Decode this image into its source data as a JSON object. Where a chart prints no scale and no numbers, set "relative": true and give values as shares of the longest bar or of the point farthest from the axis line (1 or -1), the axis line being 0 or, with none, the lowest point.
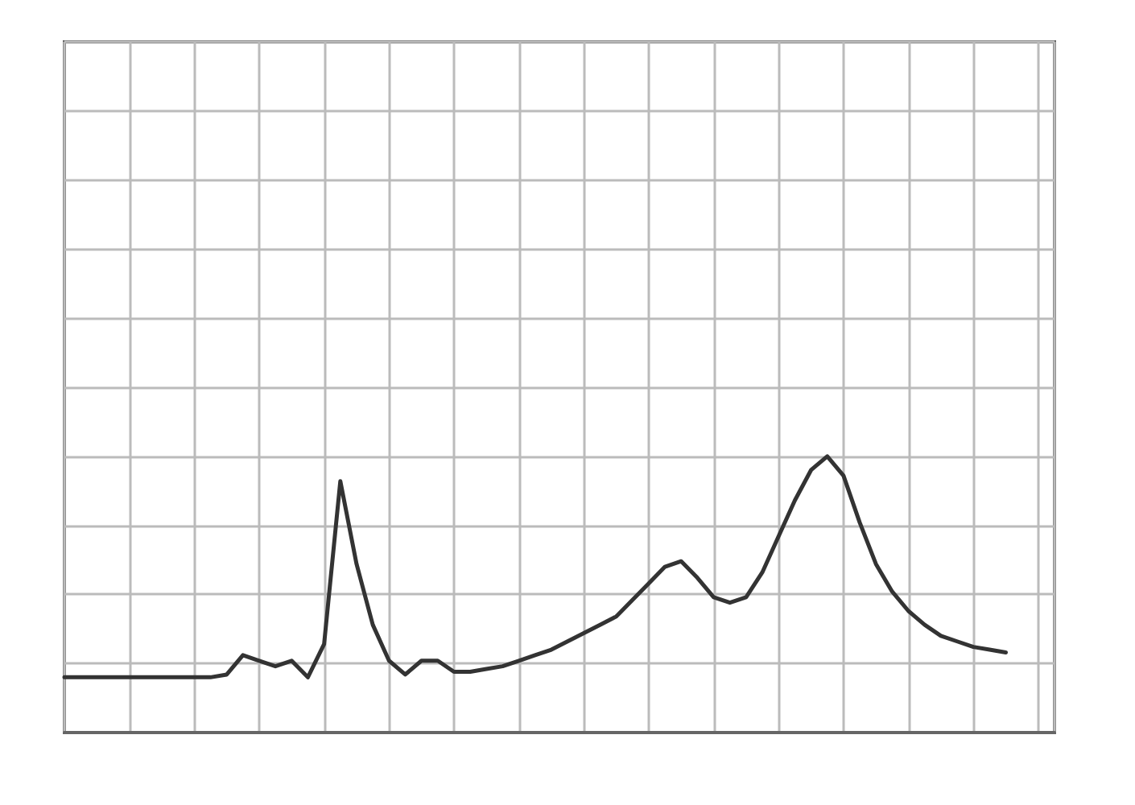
{
  "chart_data": {
    "type": "line",
    "relative": true,
    "grid": true,
    "marker": "none",
    "line_style": "solid",
    "categories": [
      null,
      null,
      null,
      null,
      null,
      null,
      null,
      null,
      null,
      null,
      null,
      null,
      null,
      null,
      null,
      null,
      null,
      null,
      null,
      null,
      null,
      null,
      null,
      null,
      null,
      null,
      null,
      null,
      null,
      null,
      null,
      null,
      null,
      null,
      null,
      null,
      null,
      null,
      null,
      null,
      null,
      null,
      null,
      null,
      null,
      null,
      null,
      null,
      null,
      null,
      null,
      null,
      null,
      null,
      null,
      null,
      null,
      null,
      null,
      null,
      null,
      null
    ],
    "series": [
      {
        "color": "#333333",
        "values": [
          0.2,
          0.2,
          0.2,
          0.2,
          0.2,
          0.2,
          0.2,
          0.2,
          0.2,
          0.2,
          0.21,
          0.28,
          0.26,
          0.24,
          0.26,
          0.2,
          0.32,
          0.91,
          0.61,
          0.39,
          0.26,
          0.21,
          0.26,
          0.26,
          0.22,
          0.22,
          0.23,
          0.24,
          0.26,
          0.28,
          0.3,
          0.33,
          0.36,
          0.39,
          0.42,
          0.48,
          0.54,
          0.6,
          0.62,
          0.56,
          0.49,
          0.47,
          0.49,
          0.58,
          0.71,
          0.84,
          0.95,
          1,
          0.93,
          0.76,
          0.61,
          0.51,
          0.44,
          0.39,
          0.35,
          0.33,
          0.31,
          0.3,
          0.29,
          null,
          null,
          null
        ]
      }
    ]
  }
}
